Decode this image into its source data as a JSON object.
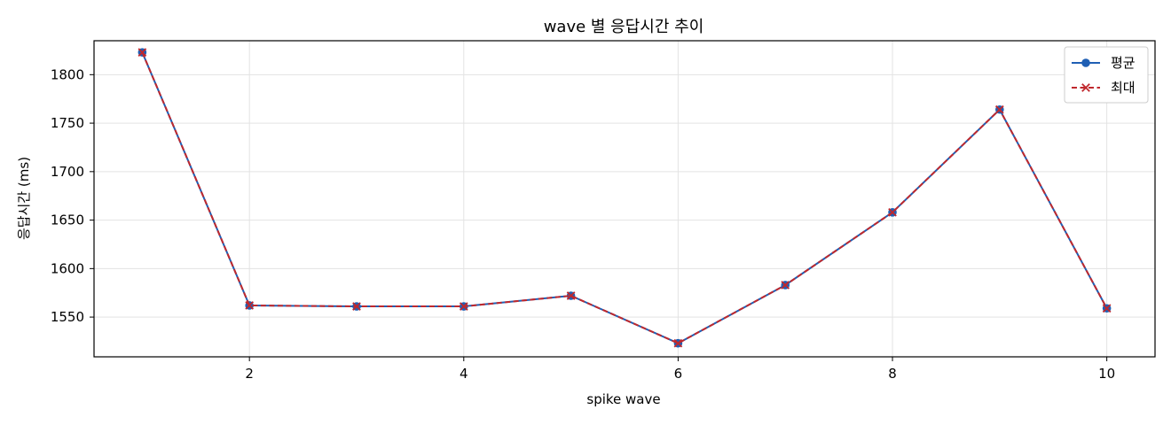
{
  "chart_data": {
    "type": "line",
    "title": "wave 별 응답시간 추이",
    "xlabel": "spike wave",
    "ylabel": "응답시간 (ms)",
    "x": [
      1,
      2,
      3,
      4,
      5,
      6,
      7,
      8,
      9,
      10
    ],
    "xlim": [
      0.55,
      10.45
    ],
    "ylim": [
      1509,
      1835
    ],
    "x_ticks": [
      2,
      4,
      6,
      8,
      10
    ],
    "y_ticks": [
      1550,
      1600,
      1650,
      1700,
      1750,
      1800
    ],
    "grid": true,
    "legend_position": "top-right",
    "series": [
      {
        "name": "평균",
        "values": [
          1823,
          1562,
          1561,
          1561,
          1572,
          1523,
          1583,
          1658,
          1764,
          1559
        ],
        "color": "#1f5fb4",
        "line_style": "solid",
        "marker": "circle"
      },
      {
        "name": "최대",
        "values": [
          1823,
          1562,
          1561,
          1561,
          1572,
          1523,
          1583,
          1658,
          1764,
          1559
        ],
        "color": "#c0282d",
        "line_style": "dashed",
        "marker": "x"
      }
    ]
  }
}
